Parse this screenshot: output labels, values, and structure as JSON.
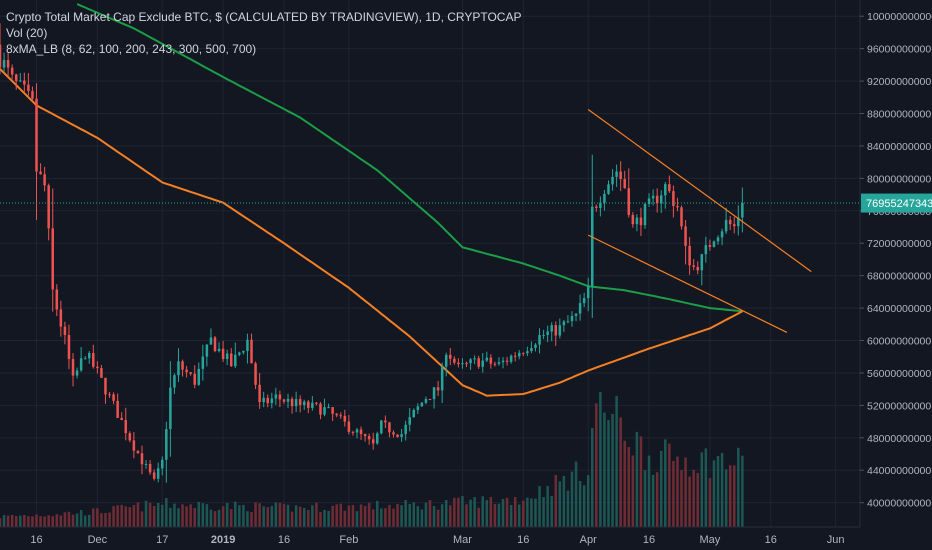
{
  "legend": {
    "title": "Crypto Total Market Cap Exclude BTC, $ (CALCULATED BY TRADINGVIEW), 1D, CRYPTOCAP",
    "volume": "Vol (20)",
    "ma": "8xMA_LB (8, 62, 100, 200, 243, 300, 500, 700)"
  },
  "price_tag": "76955247343",
  "colors": {
    "background": "#131722",
    "grid": "#1f2433",
    "up": "#26a69a",
    "down": "#ef5350",
    "ma_green": "#1b9e46",
    "ma_orange": "#f57f22",
    "trendline": "#f57f22",
    "price_line": "#26a69a",
    "axis_text": "#b2b5be"
  },
  "chart_data": {
    "type": "candlestick",
    "title": "Crypto Total Market Cap Exclude BTC, $ (CALCULATED BY TRADINGVIEW), 1D, CRYPTOCAP",
    "y_unit": "USD",
    "ylim": [
      37000000000,
      102000000000
    ],
    "y_ticks": [
      100000000000,
      96000000000,
      92000000000,
      88000000000,
      84000000000,
      80000000000,
      76000000000,
      72000000000,
      68000000000,
      64000000000,
      60000000000,
      56000000000,
      52000000000,
      48000000000,
      44000000000,
      40000000000
    ],
    "y_tick_labels": [
      "100000000000",
      "96000000000",
      "92000000000",
      "88000000000",
      "84000000000",
      "80000000000",
      "76000000000",
      "72000000000",
      "68000000000",
      "64000000000",
      "60000000000",
      "56000000000",
      "52000000000",
      "48000000000",
      "44000000000",
      "40000000000"
    ],
    "x_start": "2018-11-07",
    "x_end": "2019-06-07",
    "x_ticks": [
      {
        "date": "2018-11-16",
        "label": "16"
      },
      {
        "date": "2018-12-01",
        "label": "Dec"
      },
      {
        "date": "2018-12-17",
        "label": "17"
      },
      {
        "date": "2019-01-01",
        "label": "2019"
      },
      {
        "date": "2019-01-16",
        "label": "16"
      },
      {
        "date": "2019-02-01",
        "label": "Feb"
      },
      {
        "date": "2019-03-01",
        "label": "Mar"
      },
      {
        "date": "2019-03-16",
        "label": "16"
      },
      {
        "date": "2019-04-01",
        "label": "Apr"
      },
      {
        "date": "2019-04-16",
        "label": "16"
      },
      {
        "date": "2019-05-01",
        "label": "May"
      },
      {
        "date": "2019-05-16",
        "label": "16"
      },
      {
        "date": "2019-06-01",
        "label": "Jun"
      }
    ],
    "close_keypoints": [
      {
        "date": "2018-11-07",
        "close": 95000000000
      },
      {
        "date": "2018-11-10",
        "close": 92000000000
      },
      {
        "date": "2018-11-13",
        "close": 90500000000
      },
      {
        "date": "2018-11-15",
        "close": 89000000000
      },
      {
        "date": "2018-11-16",
        "close": 81000000000
      },
      {
        "date": "2018-11-18",
        "close": 79000000000
      },
      {
        "date": "2018-11-19",
        "close": 73000000000
      },
      {
        "date": "2018-11-20",
        "close": 66000000000
      },
      {
        "date": "2018-11-23",
        "close": 60000000000
      },
      {
        "date": "2018-11-25",
        "close": 55000000000
      },
      {
        "date": "2018-11-28",
        "close": 58500000000
      },
      {
        "date": "2018-12-01",
        "close": 56000000000
      },
      {
        "date": "2018-12-06",
        "close": 51000000000
      },
      {
        "date": "2018-12-10",
        "close": 47000000000
      },
      {
        "date": "2018-12-15",
        "close": 42500000000
      },
      {
        "date": "2018-12-17",
        "close": 45000000000
      },
      {
        "date": "2018-12-19",
        "close": 54000000000
      },
      {
        "date": "2018-12-21",
        "close": 57000000000
      },
      {
        "date": "2018-12-25",
        "close": 55000000000
      },
      {
        "date": "2018-12-29",
        "close": 60000000000
      },
      {
        "date": "2019-01-03",
        "close": 57000000000
      },
      {
        "date": "2019-01-07",
        "close": 60000000000
      },
      {
        "date": "2019-01-10",
        "close": 52000000000
      },
      {
        "date": "2019-01-14",
        "close": 53000000000
      },
      {
        "date": "2019-01-20",
        "close": 52000000000
      },
      {
        "date": "2019-01-26",
        "close": 51500000000
      },
      {
        "date": "2019-02-02",
        "close": 49000000000
      },
      {
        "date": "2019-02-07",
        "close": 47000000000
      },
      {
        "date": "2019-02-09",
        "close": 49500000000
      },
      {
        "date": "2019-02-14",
        "close": 48500000000
      },
      {
        "date": "2019-02-17",
        "close": 51000000000
      },
      {
        "date": "2019-02-20",
        "close": 53000000000
      },
      {
        "date": "2019-02-23",
        "close": 54000000000
      },
      {
        "date": "2019-02-24",
        "close": 56000000000
      },
      {
        "date": "2019-02-25",
        "close": 59000000000
      },
      {
        "date": "2019-02-28",
        "close": 56500000000
      },
      {
        "date": "2019-03-05",
        "close": 57500000000
      },
      {
        "date": "2019-03-10",
        "close": 57000000000
      },
      {
        "date": "2019-03-16",
        "close": 59000000000
      },
      {
        "date": "2019-03-20",
        "close": 60500000000
      },
      {
        "date": "2019-03-25",
        "close": 61500000000
      },
      {
        "date": "2019-03-29",
        "close": 63000000000
      },
      {
        "date": "2019-04-01",
        "close": 66000000000
      },
      {
        "date": "2019-04-02",
        "close": 76000000000
      },
      {
        "date": "2019-04-05",
        "close": 79000000000
      },
      {
        "date": "2019-04-08",
        "close": 81000000000
      },
      {
        "date": "2019-04-10",
        "close": 79000000000
      },
      {
        "date": "2019-04-12",
        "close": 74000000000
      },
      {
        "date": "2019-04-16",
        "close": 76500000000
      },
      {
        "date": "2019-04-20",
        "close": 79000000000
      },
      {
        "date": "2019-04-23",
        "close": 76500000000
      },
      {
        "date": "2019-04-25",
        "close": 71000000000
      },
      {
        "date": "2019-04-27",
        "close": 69000000000
      },
      {
        "date": "2019-04-29",
        "close": 70000000000
      },
      {
        "date": "2019-05-02",
        "close": 73000000000
      },
      {
        "date": "2019-05-05",
        "close": 74500000000
      },
      {
        "date": "2019-05-07",
        "close": 74000000000
      },
      {
        "date": "2019-05-09",
        "close": 76955247343
      }
    ],
    "volume_keypoints": [
      {
        "date": "2018-11-07",
        "rel": 0.08
      },
      {
        "date": "2018-12-01",
        "rel": 0.12
      },
      {
        "date": "2018-12-17",
        "rel": 0.18
      },
      {
        "date": "2019-01-16",
        "rel": 0.15
      },
      {
        "date": "2019-02-16",
        "rel": 0.17
      },
      {
        "date": "2019-03-16",
        "rel": 0.22
      },
      {
        "date": "2019-04-01",
        "rel": 0.45
      },
      {
        "date": "2019-04-03",
        "rel": 1.0
      },
      {
        "date": "2019-04-16",
        "rel": 0.55
      },
      {
        "date": "2019-05-09",
        "rel": 0.5
      }
    ],
    "series": [
      {
        "name": "8xMA_LB green",
        "points": [
          {
            "date": "2018-11-26",
            "value": 101500000000
          },
          {
            "date": "2018-12-10",
            "value": 98500000000
          },
          {
            "date": "2019-01-01",
            "value": 92500000000
          },
          {
            "date": "2019-01-20",
            "value": 87500000000
          },
          {
            "date": "2019-02-08",
            "value": 81000000000
          },
          {
            "date": "2019-02-23",
            "value": 74500000000
          },
          {
            "date": "2019-03-01",
            "value": 71500000000
          },
          {
            "date": "2019-03-16",
            "value": 69500000000
          },
          {
            "date": "2019-03-25",
            "value": 68000000000
          },
          {
            "date": "2019-04-01",
            "value": 66700000000
          },
          {
            "date": "2019-04-10",
            "value": 66200000000
          },
          {
            "date": "2019-04-20",
            "value": 65200000000
          },
          {
            "date": "2019-05-01",
            "value": 64000000000
          },
          {
            "date": "2019-05-09",
            "value": 63600000000
          }
        ]
      },
      {
        "name": "8xMA_LB orange",
        "points": [
          {
            "date": "2018-11-07",
            "value": 93500000000
          },
          {
            "date": "2018-11-16",
            "value": 89000000000
          },
          {
            "date": "2018-12-01",
            "value": 85000000000
          },
          {
            "date": "2018-12-17",
            "value": 79500000000
          },
          {
            "date": "2019-01-01",
            "value": 77000000000
          },
          {
            "date": "2019-01-16",
            "value": 72000000000
          },
          {
            "date": "2019-02-01",
            "value": 66500000000
          },
          {
            "date": "2019-02-16",
            "value": 60500000000
          },
          {
            "date": "2019-03-01",
            "value": 54500000000
          },
          {
            "date": "2019-03-07",
            "value": 53200000000
          },
          {
            "date": "2019-03-16",
            "value": 53400000000
          },
          {
            "date": "2019-03-25",
            "value": 54800000000
          },
          {
            "date": "2019-04-01",
            "value": 56300000000
          },
          {
            "date": "2019-04-16",
            "value": 59000000000
          },
          {
            "date": "2019-05-01",
            "value": 61500000000
          },
          {
            "date": "2019-05-09",
            "value": 63600000000
          }
        ]
      }
    ],
    "trendlines": [
      {
        "from": {
          "date": "2019-04-01",
          "value": 88500000000
        },
        "to": {
          "date": "2019-05-26",
          "value": 68500000000
        }
      },
      {
        "from": {
          "date": "2019-04-01",
          "value": 73000000000
        },
        "to": {
          "date": "2019-05-20",
          "value": 61000000000
        }
      }
    ],
    "last_price": 76955247343
  }
}
